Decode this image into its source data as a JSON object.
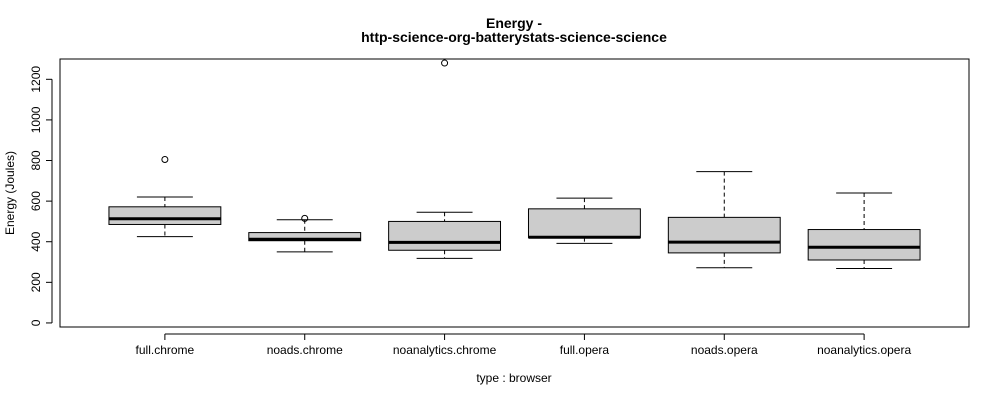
{
  "chart_data": {
    "type": "boxplot",
    "title_line1": "Energy -",
    "title_line2": "http-science-org-batterystats-science-science",
    "xlabel": "type : browser",
    "ylabel": "Energy (Joules)",
    "ylim": [
      -20,
      1300
    ],
    "yticks": [
      0,
      200,
      400,
      600,
      800,
      1000,
      1200
    ],
    "grid": false,
    "box_fill": "#cccccc",
    "line_color": "#000000",
    "categories": [
      "full.chrome",
      "noads.chrome",
      "noanalytics.chrome",
      "full.opera",
      "noads.opera",
      "noanalytics.opera"
    ],
    "boxes": [
      {
        "whisker_low": 425,
        "q1": 485,
        "median": 513,
        "q3": 572,
        "whisker_high": 620,
        "outliers": [
          805
        ]
      },
      {
        "whisker_low": 350,
        "q1": 405,
        "median": 412,
        "q3": 445,
        "whisker_high": 508,
        "outliers": [
          515
        ]
      },
      {
        "whisker_low": 318,
        "q1": 358,
        "median": 397,
        "q3": 500,
        "whisker_high": 545,
        "outliers": [
          1280
        ]
      },
      {
        "whisker_low": 392,
        "q1": 420,
        "median": 422,
        "q3": 562,
        "whisker_high": 615,
        "outliers": []
      },
      {
        "whisker_low": 272,
        "q1": 345,
        "median": 398,
        "q3": 520,
        "whisker_high": 745,
        "outliers": []
      },
      {
        "whisker_low": 268,
        "q1": 310,
        "median": 373,
        "q3": 460,
        "whisker_high": 640,
        "outliers": []
      }
    ]
  }
}
